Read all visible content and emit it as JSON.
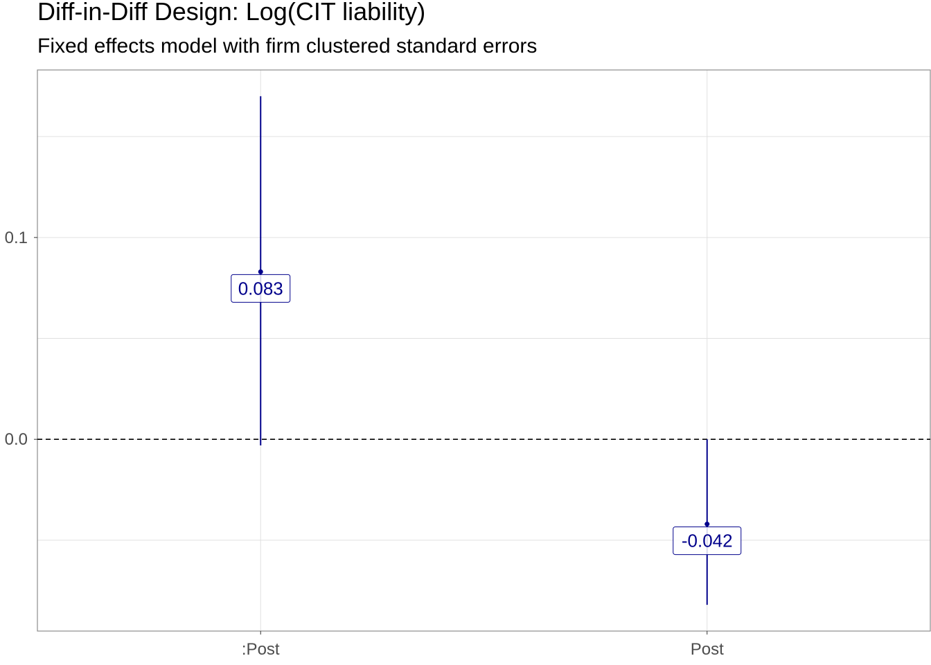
{
  "chart_data": {
    "type": "errorbar",
    "title": "Diff-in-Diff Design: Log(CIT liability)",
    "subtitle": "Fixed effects model with firm clustered standard errors",
    "xlabel": "",
    "ylabel": "",
    "categories": [
      ":Post",
      "Post"
    ],
    "estimates": [
      0.083,
      -0.042
    ],
    "labels": [
      "0.083",
      "-0.042"
    ],
    "ci_low": [
      -0.003,
      -0.082
    ],
    "ci_high": [
      0.17,
      0.0
    ],
    "ylim": [
      -0.095,
      0.183
    ],
    "y_ticks": [
      0.0,
      0.1
    ],
    "y_tick_labels": [
      "0.0",
      "0.1"
    ],
    "reference_line": 0.0,
    "grid": true,
    "colors": {
      "series": "#00008b",
      "grid": "#e0e0e0",
      "border": "#8c8c8c",
      "reference": "#000000"
    }
  }
}
